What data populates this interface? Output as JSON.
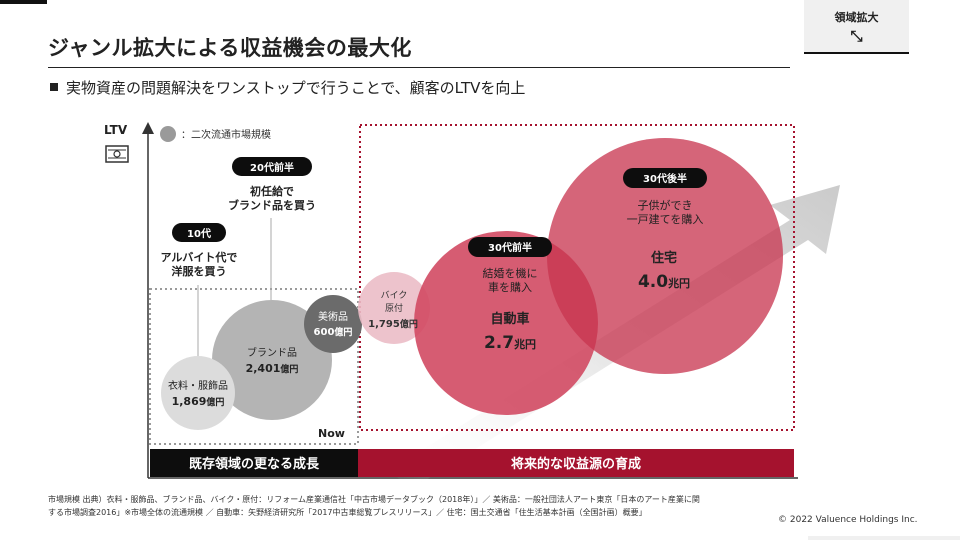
{
  "title": "ジャンル拡大による収益機会の最大化",
  "subtitle": "実物資産の問題解決をワンストップで行うことで、顧客のLTVを向上",
  "tag": {
    "label": "領域拡大",
    "icon": "expand-arrows-icon"
  },
  "diagram": {
    "y_axis_label": "LTV",
    "legend": "：二次流通市場規模",
    "now_label": "Now",
    "bottom_left_label": "既存領域の更なる成長",
    "bottom_right_label": "将来的な収益源の育成",
    "stages": {
      "teens": {
        "badge": "10代",
        "line1": "アルバイト代で",
        "line2": "洋服を買う"
      },
      "twenties": {
        "badge": "20代前半",
        "line1": "初任給で",
        "line2": "ブランド品を買う"
      },
      "thirties_early": {
        "badge": "30代前半",
        "line1": "結婚を機に",
        "line2": "車を購入"
      },
      "thirties_late": {
        "badge": "30代後半",
        "line1": "子供ができ",
        "line2": "一戸建てを購入"
      }
    },
    "bubbles": {
      "apparel": {
        "name": "衣料・服飾品",
        "value": "1,869",
        "unit": "億円"
      },
      "brand": {
        "name": "ブランド品",
        "value": "2,401",
        "unit": "億円"
      },
      "art": {
        "name": "美術品",
        "value": "600",
        "unit": "億円"
      },
      "bike": {
        "name1": "バイク",
        "name2": "原付",
        "value": "1,795",
        "unit": "億円"
      },
      "car": {
        "name": "自動車",
        "value": "2.7",
        "unit": "兆円"
      },
      "house": {
        "name": "住宅",
        "value": "4.0",
        "unit": "兆円"
      }
    },
    "colors": {
      "grey_dark": "#6b6b6b",
      "grey_mid": "#b4b4b4",
      "grey_light": "#dcdcdc",
      "red": "#c8344f",
      "red_pale": "#ebbcc6",
      "dark_red": "#a5122e",
      "black": "#0d0d0d"
    }
  },
  "footnote": {
    "line1": "市場規模 出典）衣料・服飾品、ブランド品、バイク・原付：リフォーム産業通信社「中古市場データブック（2018年）」／ 美術品：一般社団法人アート東京「日本のアート産業に関",
    "line2": "する市場調査2016」※市場全体の流通規模 ／ 自動車：矢野経済研究所「2017中古車総覧プレスリリース」／ 住宅：国土交通省「住生活基本計画（全国計画）概要」"
  },
  "copyright": "© 2022 Valuence Holdings Inc."
}
